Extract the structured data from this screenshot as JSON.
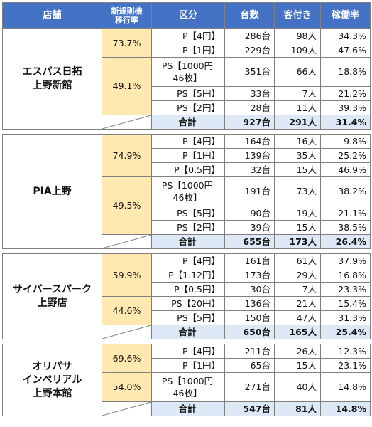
{
  "header": {
    "store": "店舗",
    "new_rate": "新規則機\n移行率",
    "category": "区分",
    "units": "台数",
    "visitors": "客付き",
    "utilization": "稼働率"
  },
  "stores": [
    {
      "name": "エスパス日拓\n上野新館",
      "groups": [
        {
          "rate": "73.7%",
          "rows": [
            {
              "cat": "P【4円】",
              "units": "286台",
              "visitors": "98人",
              "util": "34.3%"
            },
            {
              "cat": "P【1円】",
              "units": "229台",
              "visitors": "109人",
              "util": "47.6%"
            }
          ]
        },
        {
          "rate": "49.1%",
          "rows": [
            {
              "cat": "PS【1000円\n46枚】",
              "units": "351台",
              "visitors": "66人",
              "util": "18.8%"
            },
            {
              "cat": "PS【5円】",
              "units": "33台",
              "visitors": "7人",
              "util": "21.2%"
            },
            {
              "cat": "PS【2円】",
              "units": "28台",
              "visitors": "11人",
              "util": "39.3%"
            }
          ]
        }
      ],
      "total": {
        "label": "合計",
        "units": "927台",
        "visitors": "291人",
        "util": "31.4%"
      }
    },
    {
      "name": "PIA上野",
      "groups": [
        {
          "rate": "74.9%",
          "rows": [
            {
              "cat": "P【4円】",
              "units": "164台",
              "visitors": "16人",
              "util": "9.8%"
            },
            {
              "cat": "P【1円】",
              "units": "139台",
              "visitors": "35人",
              "util": "25.2%"
            },
            {
              "cat": "P【0.5円】",
              "units": "32台",
              "visitors": "15人",
              "util": "46.9%"
            }
          ]
        },
        {
          "rate": "49.5%",
          "rows": [
            {
              "cat": "PS【1000円\n46枚】",
              "units": "191台",
              "visitors": "73人",
              "util": "38.2%"
            },
            {
              "cat": "PS【5円】",
              "units": "90台",
              "visitors": "19人",
              "util": "21.1%"
            },
            {
              "cat": "PS【2円】",
              "units": "39台",
              "visitors": "15人",
              "util": "38.5%"
            }
          ]
        }
      ],
      "total": {
        "label": "合計",
        "units": "655台",
        "visitors": "173人",
        "util": "26.4%"
      }
    },
    {
      "name": "サイバースパーク\n上野店",
      "groups": [
        {
          "rate": "59.9%",
          "rows": [
            {
              "cat": "P【4円】",
              "units": "161台",
              "visitors": "61人",
              "util": "37.9%"
            },
            {
              "cat": "P【1.12円】",
              "units": "173台",
              "visitors": "29人",
              "util": "16.8%"
            },
            {
              "cat": "P【0.5円】",
              "units": "30台",
              "visitors": "7人",
              "util": "23.3%"
            }
          ]
        },
        {
          "rate": "44.6%",
          "rows": [
            {
              "cat": "PS【20円】",
              "units": "136台",
              "visitors": "21人",
              "util": "15.4%"
            },
            {
              "cat": "PS【5円】",
              "units": "150台",
              "visitors": "47人",
              "util": "31.3%"
            }
          ]
        }
      ],
      "total": {
        "label": "合計",
        "units": "650台",
        "visitors": "165人",
        "util": "25.4%"
      }
    },
    {
      "name": "オリパサ\nインペリアル\n上野本館",
      "groups": [
        {
          "rate": "69.6%",
          "rows": [
            {
              "cat": "P【4円】",
              "units": "211台",
              "visitors": "26人",
              "util": "12.3%"
            },
            {
              "cat": "P【1円】",
              "units": "65台",
              "visitors": "15人",
              "util": "23.1%"
            }
          ]
        },
        {
          "rate": "54.0%",
          "rows": [
            {
              "cat": "PS【1000円\n46枚】",
              "units": "271台",
              "visitors": "40人",
              "util": "14.8%"
            }
          ]
        }
      ],
      "total": {
        "label": "合計",
        "units": "547台",
        "visitors": "81人",
        "util": "14.8%"
      }
    }
  ]
}
